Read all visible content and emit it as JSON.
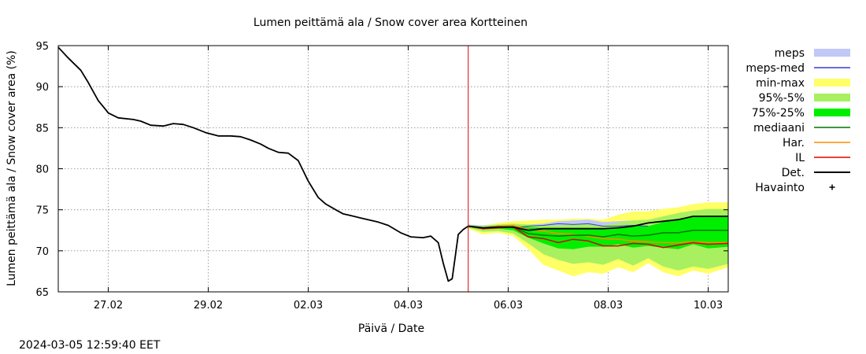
{
  "chart_data": {
    "type": "area",
    "title": "Lumen peittämä ala / Snow cover area Kortteinen",
    "xlabel": "Päivä / Date",
    "ylabel": "Lumen peittämä ala / Snow cover area (%)",
    "ylim": [
      65,
      95
    ],
    "yticks": [
      65,
      70,
      75,
      80,
      85,
      90,
      95
    ],
    "xlim_days": [
      0,
      13.4
    ],
    "x_unit": "days since 2024-02-26 00:00",
    "xticks": [
      {
        "day": 1,
        "label": "27.02"
      },
      {
        "day": 3,
        "label": "29.02"
      },
      {
        "day": 5,
        "label": "02.03"
      },
      {
        "day": 7,
        "label": "04.03"
      },
      {
        "day": 9,
        "label": "06.03"
      },
      {
        "day": 11,
        "label": "08.03"
      },
      {
        "day": 13,
        "label": "10.03"
      }
    ],
    "grid": true,
    "now_line_day": 8.2,
    "legend_position": "right",
    "legend": [
      {
        "key": "meps",
        "label": "meps",
        "style": "band",
        "color": "#c0c8f8"
      },
      {
        "key": "meps_med",
        "label": "meps-med",
        "style": "line",
        "color": "#3a3ad0"
      },
      {
        "key": "minmax",
        "label": "min-max",
        "style": "band",
        "color": "#ffff66"
      },
      {
        "key": "p95_5",
        "label": "95%-5%",
        "style": "band",
        "color": "#a8f060"
      },
      {
        "key": "p75_25",
        "label": "75%-25%",
        "style": "band",
        "color": "#00ee00"
      },
      {
        "key": "mediaani",
        "label": "mediaani",
        "style": "line",
        "color": "#007700"
      },
      {
        "key": "har",
        "label": "Har.",
        "style": "line",
        "color": "#ff8c00"
      },
      {
        "key": "il",
        "label": "IL",
        "style": "line",
        "color": "#dd0000"
      },
      {
        "key": "det",
        "label": "Det.",
        "style": "line",
        "color": "#000000"
      },
      {
        "key": "havainto",
        "label": "Havainto",
        "style": "marker",
        "color": "#000000"
      }
    ],
    "observed_det": {
      "x": [
        0,
        0.2,
        0.45,
        0.6,
        0.8,
        0.95,
        1.0,
        1.2,
        1.5,
        1.65,
        1.85,
        2.1,
        2.3,
        2.5,
        2.7,
        2.95,
        3.2,
        3.45,
        3.65,
        3.85,
        4.05,
        4.2,
        4.4,
        4.6,
        4.8,
        5.0,
        5.2,
        5.35,
        5.55,
        5.7,
        5.85,
        6.05,
        6.4,
        6.6,
        6.85,
        7.05,
        7.3,
        7.45,
        7.6,
        7.7,
        7.8,
        7.88,
        8.0,
        8.1,
        8.2
      ],
      "y": [
        94.8,
        93.5,
        92.0,
        90.5,
        88.3,
        87.2,
        86.8,
        86.2,
        86.0,
        85.8,
        85.3,
        85.2,
        85.5,
        85.4,
        85.0,
        84.4,
        84.0,
        84.0,
        83.9,
        83.5,
        83.0,
        82.5,
        82.0,
        81.9,
        81.0,
        78.5,
        76.5,
        75.7,
        75.0,
        74.5,
        74.3,
        74.0,
        73.5,
        73.1,
        72.2,
        71.7,
        71.6,
        71.8,
        71.0,
        68.5,
        66.3,
        66.6,
        72.0,
        72.6,
        73.0
      ]
    },
    "forecast_x": [
      8.2,
      8.5,
      8.8,
      9.1,
      9.4,
      9.7,
      10.0,
      10.3,
      10.6,
      10.9,
      11.2,
      11.5,
      11.8,
      12.1,
      12.4,
      12.7,
      13.0,
      13.4
    ],
    "forecast": {
      "meps": {
        "min": [
          72.9,
          72.6,
          72.8,
          72.6,
          72.8,
          72.9,
          73.1,
          73.0,
          73.0,
          72.8,
          72.7,
          72.8,
          72.7
        ],
        "max": [
          73.2,
          73.1,
          73.2,
          73.0,
          73.2,
          73.3,
          73.6,
          73.7,
          73.8,
          73.5,
          73.6,
          73.7,
          73.6
        ]
      },
      "meps_med": [
        73.0,
        72.8,
        73.0,
        72.8,
        73.0,
        73.1,
        73.3,
        73.2,
        73.3,
        73.0,
        73.0,
        73.1,
        73.0
      ],
      "minmax": {
        "min": [
          72.7,
          72.0,
          72.2,
          71.8,
          70.2,
          68.3,
          67.6,
          66.9,
          67.4,
          67.2,
          68.0,
          67.4,
          68.5,
          67.4,
          66.9,
          67.6,
          67.2,
          68.0
        ],
        "max": [
          73.2,
          73.1,
          73.4,
          73.6,
          73.7,
          73.8,
          73.8,
          73.9,
          73.9,
          73.8,
          74.4,
          74.8,
          74.8,
          75.1,
          75.3,
          75.7,
          75.9,
          75.9
        ]
      },
      "p95_5": {
        "min": [
          72.8,
          72.3,
          72.4,
          72.1,
          70.9,
          69.6,
          68.9,
          68.4,
          68.6,
          68.3,
          69.0,
          68.2,
          69.1,
          68.1,
          67.6,
          68.1,
          67.8,
          68.4
        ],
        "max": [
          73.1,
          73.0,
          73.2,
          73.3,
          73.2,
          73.1,
          73.1,
          73.2,
          73.2,
          73.1,
          73.4,
          73.7,
          73.8,
          74.2,
          74.6,
          74.9,
          75.1,
          75.1
        ]
      },
      "p75_25": {
        "min": [
          72.9,
          72.6,
          72.7,
          72.5,
          71.6,
          70.9,
          70.3,
          70.2,
          70.5,
          70.5,
          70.8,
          70.4,
          70.6,
          70.4,
          70.2,
          70.8,
          70.3,
          70.5
        ],
        "max": [
          73.1,
          72.9,
          73.1,
          73.1,
          72.9,
          72.8,
          72.8,
          72.8,
          72.8,
          72.7,
          72.9,
          73.0,
          73.0,
          73.5,
          73.8,
          74.1,
          74.3,
          74.3
        ]
      },
      "mediaani": [
        73.0,
        72.8,
        72.9,
        72.9,
        72.1,
        71.9,
        71.8,
        71.9,
        71.9,
        71.7,
        72.0,
        71.8,
        71.9,
        72.2,
        72.2,
        72.5,
        72.5,
        72.5
      ],
      "har": [
        73.0,
        72.8,
        73.0,
        73.1,
        72.6,
        72.4,
        72.1,
        72.0,
        71.8,
        71.5,
        71.4,
        71.2,
        71.1,
        71.0,
        71.0,
        71.1,
        71.0,
        71.0
      ],
      "il": [
        73.0,
        72.7,
        72.8,
        72.9,
        71.7,
        71.5,
        71.0,
        71.4,
        71.2,
        70.6,
        70.6,
        70.9,
        70.8,
        70.4,
        70.7,
        71.0,
        70.8,
        70.9
      ],
      "det": [
        73.0,
        72.8,
        72.9,
        72.9,
        72.5,
        72.7,
        72.7,
        72.7,
        72.7,
        72.7,
        72.8,
        73.0,
        73.4,
        73.6,
        73.8,
        74.2,
        74.2,
        74.2
      ]
    },
    "timestamp": "2024-03-05 12:59:40 EET"
  }
}
